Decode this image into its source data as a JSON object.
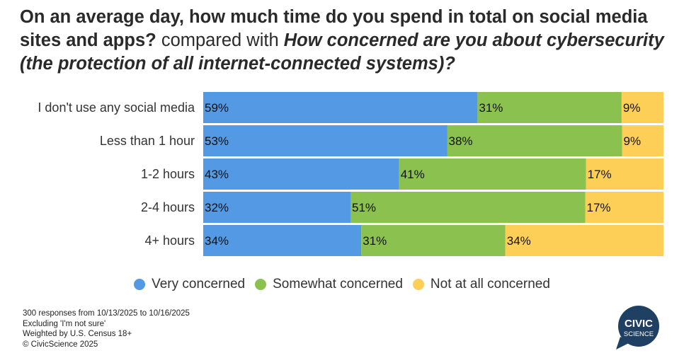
{
  "title": {
    "part1": "On an average day, how much time do you spend in total on social media sites and apps?",
    "part2": " compared with ",
    "part3": "How concerned are you about cybersecurity (the protection of all internet-connected systems)?"
  },
  "chart_data": {
    "type": "stacked-bar-horizontal",
    "categories": [
      "I don't use any social media",
      "Less than 1 hour",
      "1-2 hours",
      "2-4 hours",
      "4+ hours"
    ],
    "series": [
      {
        "name": "Very concerned",
        "color": "#5499e3",
        "values": [
          59,
          53,
          43,
          32,
          34
        ]
      },
      {
        "name": "Somewhat concerned",
        "color": "#8bc14f",
        "values": [
          31,
          38,
          41,
          51,
          31
        ]
      },
      {
        "name": "Not at all concerned",
        "color": "#fdcf57",
        "values": [
          9,
          9,
          17,
          17,
          34
        ]
      }
    ],
    "value_suffix": "%",
    "legend_position": "bottom"
  },
  "footnotes": [
    "300 responses from 10/13/2025 to 10/16/2025",
    "Excluding 'I'm not sure'",
    "Weighted by U.S. Census 18+",
    "© CivicScience 2025"
  ],
  "logo": {
    "line1": "CIVIC",
    "line2": "SCIENCE",
    "color": "#1f3f63"
  }
}
